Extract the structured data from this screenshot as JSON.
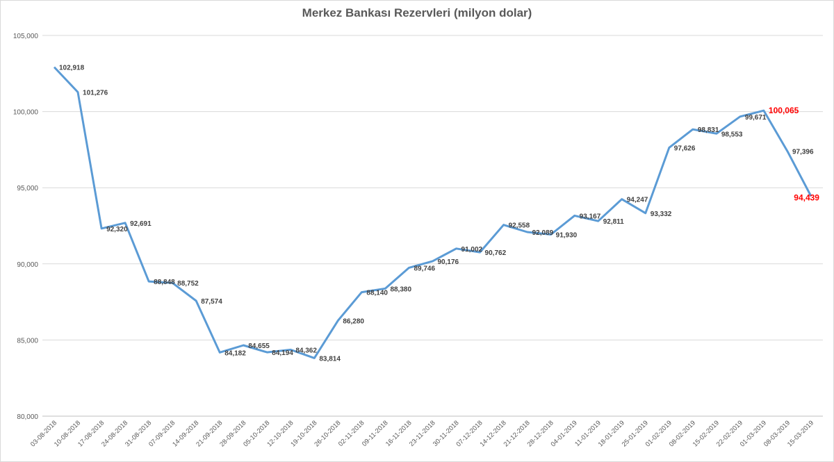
{
  "chart_data": {
    "type": "line",
    "title": "Merkez Bankası Rezervleri (milyon dolar)",
    "xlabel": "",
    "ylabel": "",
    "ylim": [
      80000,
      105000
    ],
    "yticks": [
      "80,000",
      "85,000",
      "90,000",
      "95,000",
      "100,000",
      "105,000"
    ],
    "grid": true,
    "legend": "none",
    "line_color": "#5b9bd5",
    "highlight_color": "#ff0000",
    "x": [
      "03-08-2018",
      "10-08-2018",
      "17-08-2018",
      "24-08-2018",
      "31-08-2018",
      "07-09-2018",
      "14-09-2018",
      "21-09-2018",
      "28-09-2018",
      "05-10-2018",
      "12-10-2018",
      "19-10-2018",
      "26-10-2018",
      "02-11-2018",
      "09-11-2018",
      "16-11-2018",
      "23-11-2018",
      "30-11-2018",
      "07-12-2018",
      "14-12-2018",
      "21-12-2018",
      "28-12-2018",
      "04-01-2019",
      "11-01-2019",
      "18-01-2019",
      "25-01-2019",
      "01-02-2019",
      "08-02-2019",
      "15-02-2019",
      "22-02-2019",
      "01-03-2019",
      "08-03-2019",
      "15-03-2019"
    ],
    "series": [
      {
        "values": [
          102918,
          101276,
          92320,
          92691,
          88848,
          88752,
          87574,
          84182,
          84655,
          84194,
          84362,
          83814,
          86280,
          88140,
          88380,
          89746,
          90176,
          91002,
          90762,
          92558,
          92089,
          91930,
          93167,
          92811,
          94247,
          93332,
          97626,
          98831,
          98553,
          99671,
          100065,
          97396,
          94439
        ],
        "labels": [
          "102,918",
          "101,276",
          "92,320",
          "92,691",
          "88,848",
          "88,752",
          "87,574",
          "84,182",
          "84,655",
          "84,194",
          "84,362",
          "83,814",
          "86,280",
          "88,140",
          "88,380",
          "89,746",
          "90,176",
          "91,002",
          "90,762",
          "92,558",
          "92,089",
          "91,930",
          "93,167",
          "92,811",
          "94,247",
          "93,332",
          "97,626",
          "98,831",
          "98,553",
          "99,671",
          "100,065",
          "97,396",
          "94,439"
        ],
        "highlighted": [
          30,
          32
        ]
      }
    ]
  }
}
